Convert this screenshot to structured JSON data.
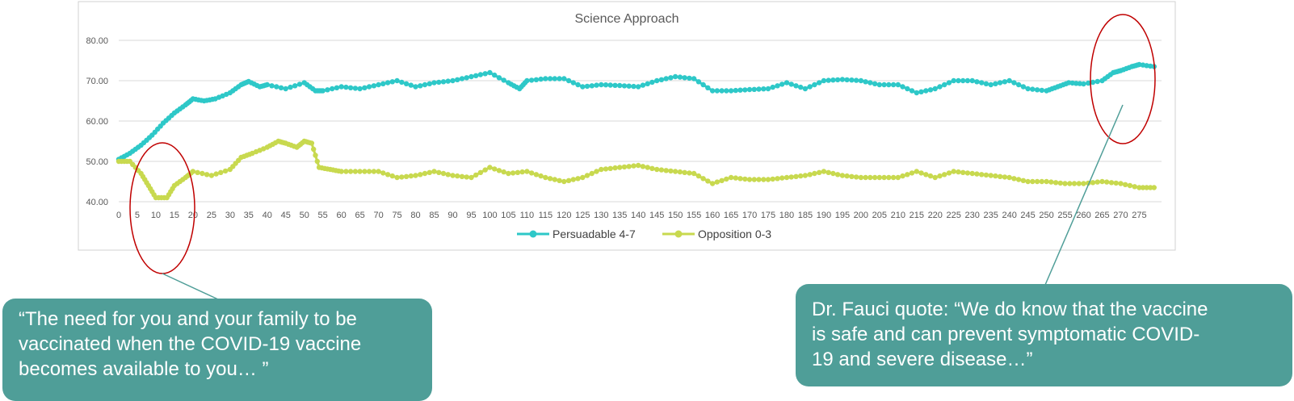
{
  "chart_data": {
    "type": "line",
    "title": "Science Approach",
    "xlabel": "",
    "ylabel": "",
    "xlim": [
      0,
      281
    ],
    "ylim": [
      40,
      80
    ],
    "y_ticks": [
      "40.00",
      "50.00",
      "60.00",
      "70.00",
      "80.00"
    ],
    "x_ticks": [
      "0",
      "5",
      "10",
      "15",
      "20",
      "25",
      "30",
      "35",
      "40",
      "45",
      "50",
      "55",
      "60",
      "65",
      "70",
      "75",
      "80",
      "85",
      "90",
      "95",
      "100",
      "105",
      "110",
      "115",
      "120",
      "125",
      "130",
      "135",
      "140",
      "145",
      "150",
      "155",
      "160",
      "165",
      "170",
      "175",
      "180",
      "185",
      "190",
      "195",
      "200",
      "205",
      "210",
      "215",
      "220",
      "225",
      "230",
      "235",
      "240",
      "245",
      "250",
      "255",
      "260",
      "265",
      "270",
      "275"
    ],
    "grid": "horizontal",
    "legend": "bottom",
    "series": [
      {
        "name": "Persuadable 4-7",
        "color": "#2ec8c8",
        "points": [
          [
            0,
            50.5
          ],
          [
            3,
            52
          ],
          [
            6,
            54
          ],
          [
            9,
            56.5
          ],
          [
            12,
            59.5
          ],
          [
            15,
            62
          ],
          [
            18,
            64
          ],
          [
            20,
            65.5
          ],
          [
            23,
            65
          ],
          [
            26,
            65.5
          ],
          [
            30,
            67
          ],
          [
            33,
            69
          ],
          [
            35,
            69.8
          ],
          [
            38,
            68.5
          ],
          [
            40,
            69
          ],
          [
            45,
            68
          ],
          [
            50,
            69.5
          ],
          [
            53,
            67.5
          ],
          [
            55,
            67.5
          ],
          [
            60,
            68.5
          ],
          [
            65,
            68
          ],
          [
            70,
            69
          ],
          [
            75,
            70
          ],
          [
            80,
            68.5
          ],
          [
            85,
            69.5
          ],
          [
            90,
            70
          ],
          [
            95,
            71
          ],
          [
            100,
            72
          ],
          [
            105,
            69.5
          ],
          [
            108,
            68
          ],
          [
            110,
            70
          ],
          [
            115,
            70.5
          ],
          [
            120,
            70.5
          ],
          [
            125,
            68.5
          ],
          [
            130,
            69
          ],
          [
            135,
            68.8
          ],
          [
            140,
            68.5
          ],
          [
            145,
            70
          ],
          [
            150,
            71
          ],
          [
            155,
            70.5
          ],
          [
            160,
            67.5
          ],
          [
            165,
            67.5
          ],
          [
            170,
            67.8
          ],
          [
            175,
            68
          ],
          [
            180,
            69.5
          ],
          [
            185,
            68
          ],
          [
            190,
            70
          ],
          [
            195,
            70.3
          ],
          [
            200,
            70
          ],
          [
            205,
            69
          ],
          [
            210,
            69
          ],
          [
            215,
            67
          ],
          [
            220,
            68
          ],
          [
            225,
            70
          ],
          [
            230,
            70
          ],
          [
            235,
            69
          ],
          [
            240,
            70
          ],
          [
            245,
            68
          ],
          [
            250,
            67.5
          ],
          [
            253,
            68.5
          ],
          [
            256,
            69.5
          ],
          [
            260,
            69.2
          ],
          [
            265,
            70
          ],
          [
            268,
            72
          ],
          [
            270,
            72.5
          ],
          [
            273,
            73.5
          ],
          [
            275,
            74
          ],
          [
            279,
            73.5
          ]
        ]
      },
      {
        "name": "Opposition 0-3",
        "color": "#c8d94f",
        "points": [
          [
            0,
            50
          ],
          [
            3,
            50
          ],
          [
            6,
            47
          ],
          [
            8,
            44
          ],
          [
            10,
            41
          ],
          [
            13,
            41
          ],
          [
            15,
            44
          ],
          [
            18,
            46
          ],
          [
            20,
            47.5
          ],
          [
            25,
            46.5
          ],
          [
            30,
            48
          ],
          [
            33,
            51
          ],
          [
            36,
            52
          ],
          [
            40,
            53.5
          ],
          [
            43,
            55
          ],
          [
            45,
            54.5
          ],
          [
            48,
            53.5
          ],
          [
            50,
            55
          ],
          [
            52,
            54.5
          ],
          [
            54,
            48.5
          ],
          [
            57,
            48
          ],
          [
            60,
            47.5
          ],
          [
            65,
            47.5
          ],
          [
            70,
            47.5
          ],
          [
            75,
            46
          ],
          [
            80,
            46.5
          ],
          [
            85,
            47.5
          ],
          [
            90,
            46.5
          ],
          [
            95,
            46
          ],
          [
            100,
            48.5
          ],
          [
            105,
            47
          ],
          [
            110,
            47.5
          ],
          [
            115,
            46
          ],
          [
            120,
            45
          ],
          [
            125,
            46
          ],
          [
            130,
            48
          ],
          [
            135,
            48.5
          ],
          [
            140,
            49
          ],
          [
            145,
            48
          ],
          [
            150,
            47.5
          ],
          [
            155,
            47
          ],
          [
            160,
            44.5
          ],
          [
            165,
            46
          ],
          [
            170,
            45.5
          ],
          [
            175,
            45.5
          ],
          [
            180,
            46
          ],
          [
            185,
            46.5
          ],
          [
            190,
            47.5
          ],
          [
            195,
            46.5
          ],
          [
            200,
            46
          ],
          [
            205,
            46
          ],
          [
            210,
            46
          ],
          [
            215,
            47.5
          ],
          [
            220,
            46
          ],
          [
            225,
            47.5
          ],
          [
            230,
            47
          ],
          [
            235,
            46.5
          ],
          [
            240,
            46
          ],
          [
            245,
            45
          ],
          [
            250,
            45
          ],
          [
            255,
            44.5
          ],
          [
            260,
            44.5
          ],
          [
            265,
            45
          ],
          [
            270,
            44.5
          ],
          [
            275,
            43.5
          ],
          [
            279,
            43.5
          ]
        ]
      }
    ]
  },
  "callouts": {
    "left": [
      "“The need for you and your family to be",
      "vaccinated when the COVID-19 vaccine",
      "becomes available to you… ”"
    ],
    "right": [
      "Dr. Fauci quote: “We do know that the vaccine",
      "is safe and can prevent symptomatic COVID-",
      "19 and severe disease…”"
    ]
  },
  "annotation_color": "#c00000",
  "connector_color": "#4f9e98"
}
